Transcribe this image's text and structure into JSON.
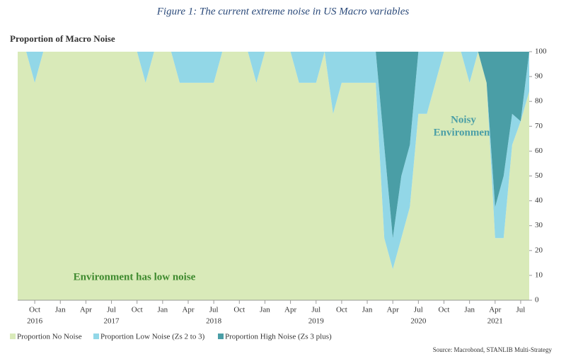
{
  "chart_data": {
    "type": "stacked-area",
    "title": "Figure 1: The current extreme noise in US Macro variables",
    "subtitle": "Proportion of Macro Noise",
    "source": "Source: Macrobond, STANLIB Multi-Strategy",
    "x": [
      "2016-08",
      "2016-09",
      "2016-10",
      "2016-11",
      "2016-12",
      "2017-01",
      "2017-02",
      "2017-03",
      "2017-04",
      "2017-05",
      "2017-06",
      "2017-07",
      "2017-08",
      "2017-09",
      "2017-10",
      "2017-11",
      "2017-12",
      "2018-01",
      "2018-02",
      "2018-03",
      "2018-04",
      "2018-05",
      "2018-06",
      "2018-07",
      "2018-08",
      "2018-09",
      "2018-10",
      "2018-11",
      "2018-12",
      "2019-01",
      "2019-02",
      "2019-03",
      "2019-04",
      "2019-05",
      "2019-06",
      "2019-07",
      "2019-08",
      "2019-09",
      "2019-10",
      "2019-11",
      "2019-12",
      "2020-01",
      "2020-02",
      "2020-03",
      "2020-04",
      "2020-05",
      "2020-06",
      "2020-07",
      "2020-08",
      "2020-09",
      "2020-10",
      "2020-11",
      "2020-12",
      "2021-01",
      "2021-02",
      "2021-03",
      "2021-04",
      "2021-05",
      "2021-06",
      "2021-07",
      "2021-08"
    ],
    "xlim": [
      "2016-08",
      "2021-08"
    ],
    "xticks": [
      {
        "value": "2016-10",
        "label": "Oct"
      },
      {
        "value": "2017-01",
        "label": "Jan"
      },
      {
        "value": "2017-04",
        "label": "Apr"
      },
      {
        "value": "2017-07",
        "label": "Jul"
      },
      {
        "value": "2017-10",
        "label": "Oct"
      },
      {
        "value": "2018-01",
        "label": "Jan"
      },
      {
        "value": "2018-04",
        "label": "Apr"
      },
      {
        "value": "2018-07",
        "label": "Jul"
      },
      {
        "value": "2018-10",
        "label": "Oct"
      },
      {
        "value": "2019-01",
        "label": "Jan"
      },
      {
        "value": "2019-04",
        "label": "Apr"
      },
      {
        "value": "2019-07",
        "label": "Jul"
      },
      {
        "value": "2019-10",
        "label": "Oct"
      },
      {
        "value": "2020-01",
        "label": "Jan"
      },
      {
        "value": "2020-04",
        "label": "Apr"
      },
      {
        "value": "2020-07",
        "label": "Jul"
      },
      {
        "value": "2020-10",
        "label": "Oct"
      },
      {
        "value": "2021-01",
        "label": "Jan"
      },
      {
        "value": "2021-04",
        "label": "Apr"
      },
      {
        "value": "2021-07",
        "label": "Jul"
      }
    ],
    "xtick_years": [
      {
        "value": "2016-10",
        "label": "2016"
      },
      {
        "value": "2017-07",
        "label": "2017"
      },
      {
        "value": "2018-07",
        "label": "2018"
      },
      {
        "value": "2019-07",
        "label": "2019"
      },
      {
        "value": "2020-07",
        "label": "2020"
      },
      {
        "value": "2021-04",
        "label": "2021"
      }
    ],
    "ylim": [
      0,
      100
    ],
    "yticks": [
      0,
      10,
      20,
      30,
      40,
      50,
      60,
      70,
      80,
      90,
      100
    ],
    "y_axis_side": "right",
    "series": [
      {
        "name": "Proportion No Noise",
        "color": "#d9eab9",
        "values": [
          100,
          100,
          87.5,
          100,
          100,
          100,
          100,
          100,
          100,
          100,
          100,
          100,
          100,
          100,
          100,
          87.5,
          100,
          100,
          100,
          87.5,
          87.5,
          87.5,
          87.5,
          87.5,
          100,
          100,
          100,
          100,
          87.5,
          100,
          100,
          100,
          100,
          87.5,
          87.5,
          87.5,
          100,
          75,
          87.5,
          87.5,
          87.5,
          87.5,
          87.5,
          25,
          12.5,
          25,
          37.5,
          75,
          75,
          87.5,
          100,
          100,
          100,
          87.5,
          100,
          87.5,
          25,
          25,
          62.5,
          72,
          84
        ]
      },
      {
        "name": "Proportion Low Noise (Zs 2 to 3)",
        "color": "#92d7e7",
        "values": [
          0,
          0,
          12.5,
          0,
          0,
          0,
          0,
          0,
          0,
          0,
          0,
          0,
          0,
          0,
          0,
          12.5,
          0,
          0,
          0,
          12.5,
          12.5,
          12.5,
          12.5,
          12.5,
          0,
          0,
          0,
          0,
          12.5,
          0,
          0,
          0,
          0,
          12.5,
          12.5,
          12.5,
          0,
          25,
          12.5,
          12.5,
          12.5,
          12.5,
          12.5,
          37,
          12.5,
          25,
          25,
          25,
          25,
          12.5,
          0,
          0,
          0,
          12.5,
          0,
          0,
          12.5,
          25,
          12.5,
          0,
          16
        ]
      },
      {
        "name": "Proportion High Noise (Zs 3 plus)",
        "color": "#4a9ea6",
        "values": [
          0,
          0,
          0,
          0,
          0,
          0,
          0,
          0,
          0,
          0,
          0,
          0,
          0,
          0,
          0,
          0,
          0,
          0,
          0,
          0,
          0,
          0,
          0,
          0,
          0,
          0,
          0,
          0,
          0,
          0,
          0,
          0,
          0,
          0,
          0,
          0,
          0,
          0,
          0,
          0,
          0,
          0,
          0,
          38,
          75,
          50,
          37.5,
          0,
          0,
          0,
          0,
          0,
          0,
          0,
          0,
          12.5,
          62.5,
          50,
          25,
          28,
          0
        ]
      }
    ],
    "annotations": [
      {
        "lines": [
          "Noisy",
          "Environment"
        ],
        "color": "#4a9ea6"
      },
      {
        "lines": [
          "Environment has low noise"
        ],
        "color": "#3e8a2e"
      }
    ]
  }
}
